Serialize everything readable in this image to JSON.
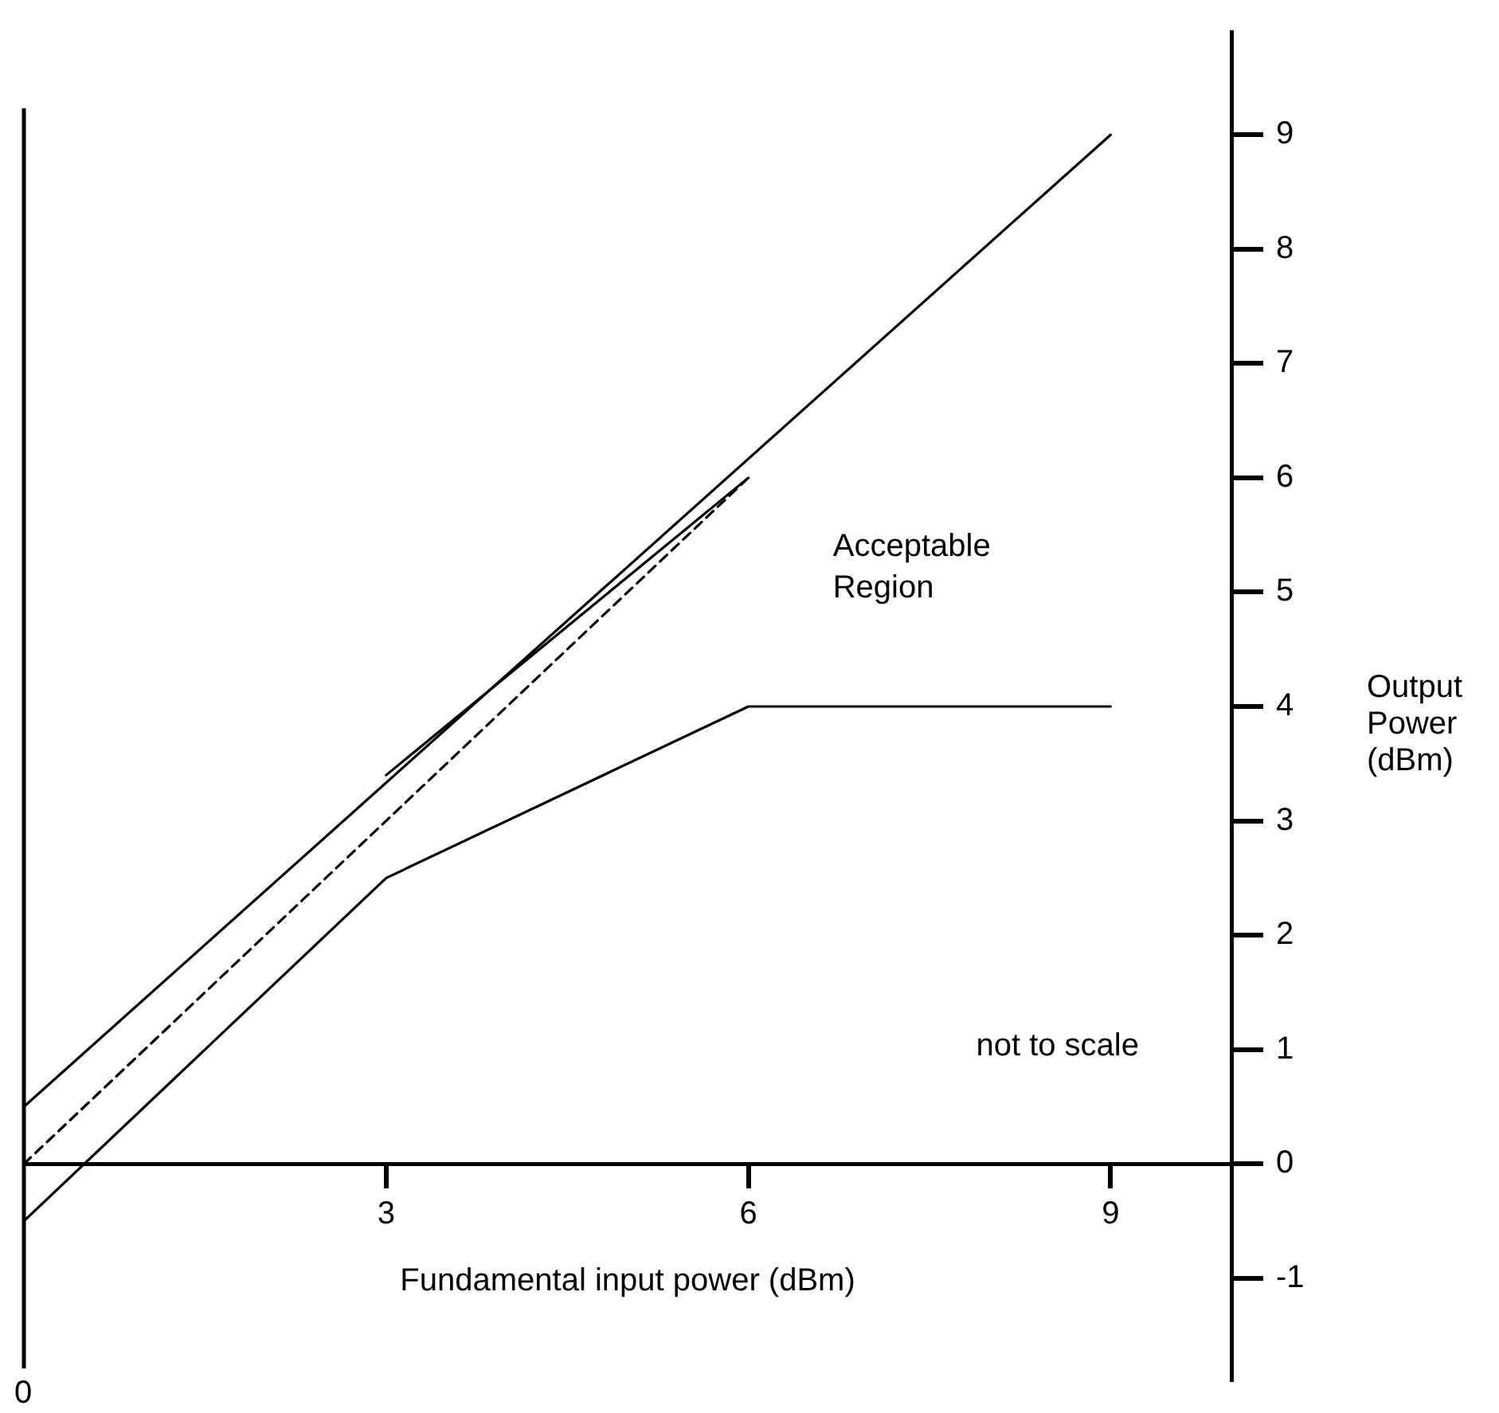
{
  "chart_data": {
    "type": "line",
    "xlabel": "Fundamental input power (dBm)",
    "ylabel": "Output Power (dBm)",
    "xlim": [
      0,
      10
    ],
    "xticks": [
      3,
      6,
      9
    ],
    "ylim": [
      -1.9,
      9.9
    ],
    "yticks": [
      -1,
      0,
      1,
      2,
      3,
      4,
      5,
      6,
      7,
      8,
      9
    ],
    "grid": false,
    "legend": false,
    "marker": "none",
    "series": [
      {
        "color": "#000000",
        "x": [
          0,
          9
        ],
        "values": [
          0.5,
          9
        ],
        "line_style": "solid"
      },
      {
        "color": "#000000",
        "x": [
          0,
          6
        ],
        "values": [
          0,
          6
        ],
        "line_style": "dashed"
      },
      {
        "color": "#000000",
        "x": [
          0,
          3,
          6,
          9
        ],
        "values": [
          -0.5,
          2.5,
          4,
          4
        ],
        "line_style": "solid"
      },
      {
        "color": "#000000",
        "x": [
          3,
          4.5,
          6
        ],
        "values": [
          3.4,
          4.7,
          6
        ],
        "line_style": "solid"
      }
    ],
    "annotations": [
      "Acceptable Region",
      "not to scale",
      "0"
    ]
  }
}
